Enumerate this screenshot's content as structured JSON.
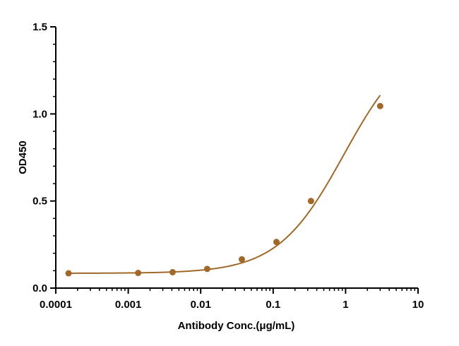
{
  "chart_data": {
    "type": "scatter",
    "title": "",
    "xlabel": "Antibody Conc.(μg/mL)",
    "ylabel": "OD450",
    "x_scale": "log",
    "xlim": [
      0.0001,
      10
    ],
    "ylim": [
      0,
      1.5
    ],
    "x_ticks": [
      0.0001,
      0.001,
      0.01,
      0.1,
      1,
      10
    ],
    "x_tick_labels": [
      "0.0001",
      "0.001",
      "0.01",
      "0.1",
      "1",
      "10"
    ],
    "y_ticks": [
      0,
      0.5,
      1.0,
      1.5
    ],
    "y_tick_labels": [
      "0.0",
      "0.5",
      "1.0",
      "1.5"
    ],
    "grid": false,
    "legend": "none",
    "fit": "4-parameter logistic curve",
    "color": "#a0692a",
    "series": [
      {
        "x": [
          0.00015,
          0.00137,
          0.0041,
          0.0123,
          0.037,
          0.111,
          0.333,
          3.0
        ],
        "y": [
          0.085,
          0.087,
          0.091,
          0.11,
          0.165,
          0.265,
          0.5,
          1.045
        ]
      }
    ]
  }
}
